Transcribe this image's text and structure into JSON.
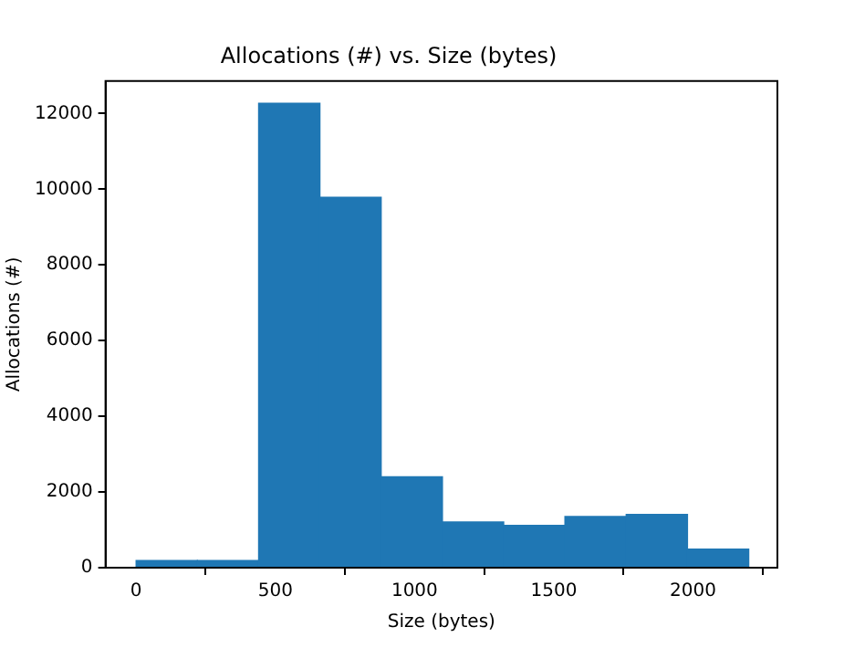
{
  "chart_data": {
    "type": "histogram",
    "title": "Allocations (#) vs. Size (bytes)",
    "xlabel": "Size (bytes)",
    "ylabel": "Allocations (#)",
    "bins": [
      0,
      220,
      440,
      660,
      880,
      1100,
      1320,
      1540,
      1760,
      1980,
      2200
    ],
    "values": [
      190,
      190,
      12270,
      9790,
      2400,
      1210,
      1120,
      1350,
      1410,
      490
    ],
    "color": "#1f77b4",
    "xlim": [
      -110,
      2303
    ],
    "ylim": [
      0,
      12860
    ],
    "xticks": [
      0,
      500,
      1000,
      1500,
      2000
    ],
    "yticks": [
      0,
      2000,
      4000,
      6000,
      8000,
      10000,
      12000
    ],
    "grid": false,
    "legend": false
  }
}
